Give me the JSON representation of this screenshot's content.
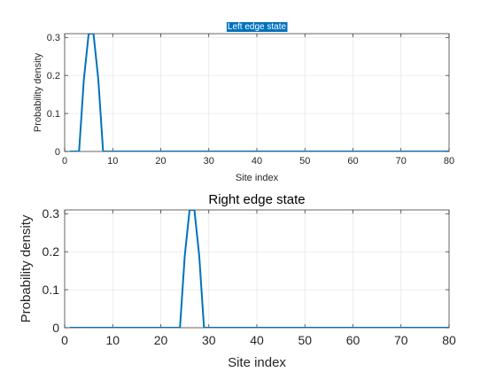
{
  "chart_data": [
    {
      "type": "line",
      "title": "Left edge state",
      "xlabel": "Site index",
      "ylabel": "Probability density",
      "xlim": [
        0,
        80
      ],
      "ylim": [
        0,
        0.31
      ],
      "xticks": [
        0,
        10,
        20,
        30,
        40,
        50,
        60,
        70,
        80
      ],
      "yticks": [
        0,
        0.1,
        0.2,
        0.3
      ],
      "ytick_labels": [
        "0",
        "0.1",
        "0.2",
        "0.3"
      ],
      "grid": true,
      "title_highlighted": true,
      "series": [
        {
          "color": "#0072bd",
          "x": [
            1,
            2,
            3,
            4,
            5,
            6,
            7,
            8,
            9,
            10,
            11,
            12,
            13,
            14,
            15,
            16,
            17,
            18,
            19,
            20,
            21,
            22,
            23,
            24,
            25,
            26,
            27,
            28,
            29,
            30,
            31,
            32,
            33,
            34,
            35,
            36,
            37,
            38,
            39,
            40,
            41,
            42,
            43,
            44,
            45,
            46,
            47,
            48,
            49,
            50,
            51,
            52,
            53,
            54,
            55,
            56,
            57,
            58,
            59,
            60,
            61,
            62,
            63,
            64,
            65,
            66,
            67,
            68,
            69,
            70,
            71,
            72,
            73,
            74,
            75,
            76,
            77,
            78,
            79,
            80
          ],
          "y": [
            0,
            0,
            0,
            0.19,
            0.31,
            0.31,
            0.19,
            0,
            0,
            0,
            0,
            0,
            0,
            0,
            0,
            0,
            0,
            0,
            0,
            0,
            0,
            0,
            0,
            0,
            0,
            0,
            0,
            0,
            0,
            0,
            0,
            0,
            0,
            0,
            0,
            0,
            0,
            0,
            0,
            0,
            0,
            0,
            0,
            0,
            0,
            0,
            0,
            0,
            0,
            0,
            0,
            0,
            0,
            0,
            0,
            0,
            0,
            0,
            0,
            0,
            0,
            0,
            0,
            0,
            0,
            0,
            0,
            0,
            0,
            0,
            0,
            0,
            0,
            0,
            0,
            0,
            0,
            0,
            0,
            0
          ]
        }
      ]
    },
    {
      "type": "line",
      "title": "Right edge state",
      "xlabel": "Site index",
      "ylabel": "Probability density",
      "xlim": [
        0,
        80
      ],
      "ylim": [
        0,
        0.31
      ],
      "xticks": [
        0,
        10,
        20,
        30,
        40,
        50,
        60,
        70,
        80
      ],
      "yticks": [
        0,
        0.1,
        0.2,
        0.3
      ],
      "ytick_labels": [
        "0",
        "0.1",
        "0.2",
        "0.3"
      ],
      "grid": true,
      "title_highlighted": false,
      "series": [
        {
          "color": "#0072bd",
          "x": [
            1,
            2,
            3,
            4,
            5,
            6,
            7,
            8,
            9,
            10,
            11,
            12,
            13,
            14,
            15,
            16,
            17,
            18,
            19,
            20,
            21,
            22,
            23,
            24,
            25,
            26,
            27,
            28,
            29,
            30,
            31,
            32,
            33,
            34,
            35,
            36,
            37,
            38,
            39,
            40,
            41,
            42,
            43,
            44,
            45,
            46,
            47,
            48,
            49,
            50,
            51,
            52,
            53,
            54,
            55,
            56,
            57,
            58,
            59,
            60,
            61,
            62,
            63,
            64,
            65,
            66,
            67,
            68,
            69,
            70,
            71,
            72,
            73,
            74,
            75,
            76,
            77,
            78,
            79,
            80
          ],
          "y": [
            0,
            0,
            0,
            0,
            0,
            0,
            0,
            0,
            0,
            0,
            0,
            0,
            0,
            0,
            0,
            0,
            0,
            0,
            0,
            0,
            0,
            0,
            0,
            0,
            0.19,
            0.31,
            0.31,
            0.19,
            0,
            0,
            0,
            0,
            0,
            0,
            0,
            0,
            0,
            0,
            0,
            0,
            0,
            0,
            0,
            0,
            0,
            0,
            0,
            0,
            0,
            0,
            0,
            0,
            0,
            0,
            0,
            0,
            0,
            0,
            0,
            0,
            0,
            0,
            0,
            0,
            0,
            0,
            0,
            0,
            0,
            0,
            0,
            0,
            0,
            0,
            0,
            0,
            0,
            0,
            0,
            0
          ]
        }
      ]
    }
  ],
  "colors": {
    "line": "#0072bd",
    "title_highlight_bg": "#0072bd",
    "grid": "#e4e4e4",
    "axis": "#262626"
  }
}
